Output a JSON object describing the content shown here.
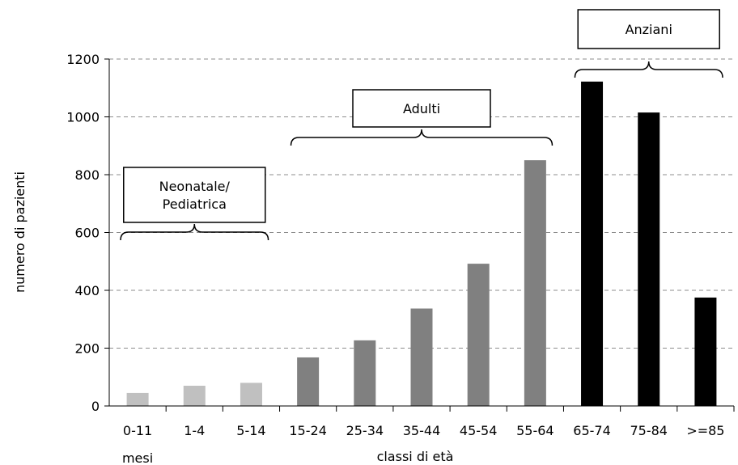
{
  "chart_data": {
    "type": "bar",
    "categories": [
      "0-11",
      "1-4",
      "5-14",
      "15-24",
      "25-34",
      "35-44",
      "45-54",
      "55-64",
      "65-74",
      "75-84",
      ">=85"
    ],
    "category_sublabels": [
      "mesi",
      "",
      "",
      "",
      "",
      "",
      "",
      "",
      "",
      "",
      ""
    ],
    "values": [
      45,
      70,
      80,
      168,
      227,
      337,
      492,
      850,
      1122,
      1015,
      375
    ],
    "xlabel": "classi di età",
    "ylabel": "numero di pazienti",
    "ylim": [
      0,
      1200
    ],
    "yticks": [
      0,
      200,
      400,
      600,
      800,
      1000,
      1200
    ],
    "grid": true,
    "groups": [
      {
        "label_lines": [
          "Neonatale/",
          "Pediatrica"
        ],
        "start": 0,
        "end": 2,
        "color": "#c0c0c0"
      },
      {
        "label_lines": [
          "Adulti"
        ],
        "start": 3,
        "end": 7,
        "color": "#808080"
      },
      {
        "label_lines": [
          "Anziani"
        ],
        "start": 8,
        "end": 10,
        "color": "#000000"
      }
    ]
  }
}
